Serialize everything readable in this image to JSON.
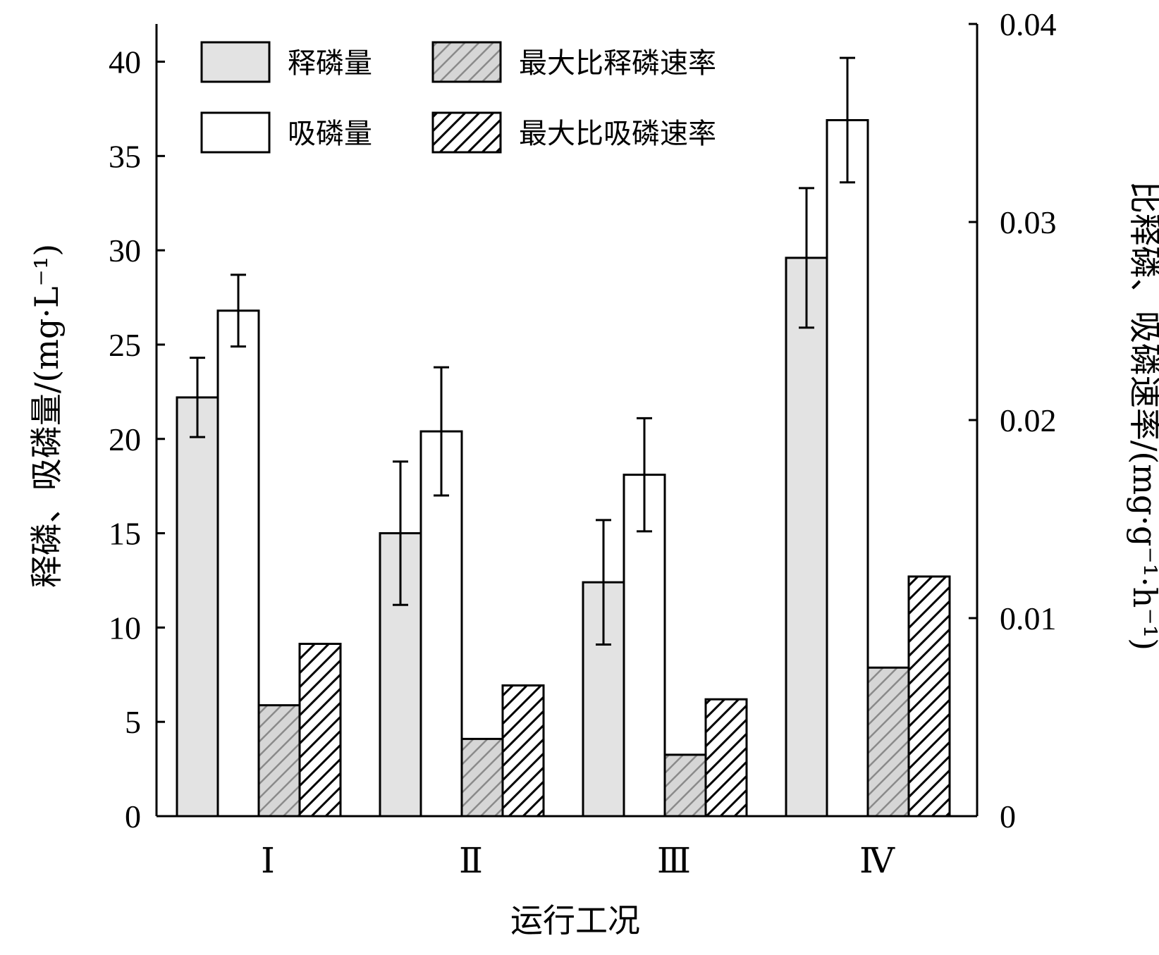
{
  "chart_data": {
    "type": "bar",
    "categories": [
      "Ⅰ",
      "Ⅱ",
      "Ⅲ",
      "Ⅳ"
    ],
    "xlabel": "运行工况",
    "ylabel_left": "释磷、吸磷量/(mg·L⁻¹)",
    "ylabel_right": "比释磷、吸磷速率/(mg·g⁻¹·h⁻¹)",
    "ylim_left": [
      0,
      42
    ],
    "ylim_right": [
      0,
      0.04
    ],
    "yticks_left": [
      "0",
      "5",
      "10",
      "15",
      "20",
      "25",
      "30",
      "35",
      "40"
    ],
    "yticks_right": [
      "0",
      "0.01",
      "0.02",
      "0.03",
      "0.04"
    ],
    "legend_position": "top-left",
    "series": [
      {
        "name": "释磷量",
        "axis": "left",
        "fill": "#e3e3e3",
        "pattern": "none",
        "values": [
          22.2,
          15.0,
          12.4,
          29.6
        ],
        "errors": [
          2.1,
          3.8,
          3.3,
          3.7
        ]
      },
      {
        "name": "吸磷量",
        "axis": "left",
        "fill": "#ffffff",
        "pattern": "none",
        "values": [
          26.8,
          20.4,
          18.1,
          36.9
        ],
        "errors": [
          1.9,
          3.4,
          3.0,
          3.3
        ]
      },
      {
        "name": "最大比释磷速率",
        "axis": "right",
        "fill": "#d6d6d6",
        "pattern": "hatch-light",
        "values": [
          0.0056,
          0.0039,
          0.0031,
          0.0075
        ],
        "errors": null
      },
      {
        "name": "最大比吸磷速率",
        "axis": "right",
        "fill": "#ffffff",
        "pattern": "hatch-dark",
        "values": [
          0.0087,
          0.0066,
          0.0059,
          0.0121
        ],
        "errors": null
      }
    ]
  }
}
